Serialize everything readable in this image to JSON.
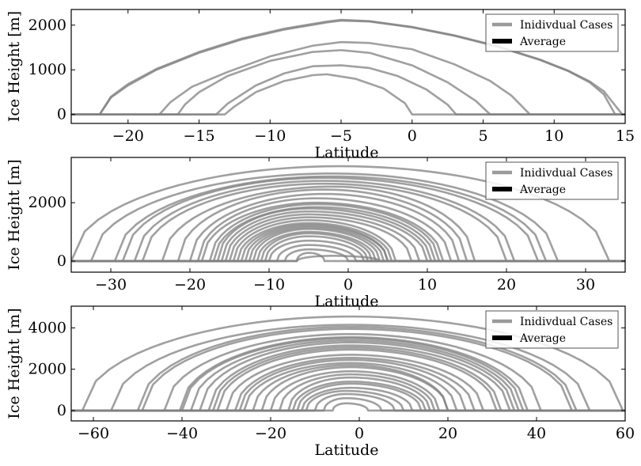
{
  "chart_data": [
    {
      "type": "line",
      "xlabel": "Latitude",
      "ylabel": "Ice Height [m]",
      "xlim": [
        -24,
        15
      ],
      "ylim": [
        -200,
        2350
      ],
      "xticks": [
        -20,
        -15,
        -10,
        -5,
        0,
        5,
        10,
        15
      ],
      "yticks": [
        0,
        1000,
        2000
      ],
      "legend": {
        "position": "top-right",
        "entries": [
          "Inidivdual Cases",
          "Average"
        ]
      },
      "series": [
        {
          "x": [
            -22,
            -21.2,
            -20,
            -18,
            -15,
            -12,
            -9,
            -6,
            -5,
            -3,
            0,
            3,
            6,
            9,
            11,
            12.5,
            13.5,
            14.3
          ],
          "y": [
            0,
            380,
            650,
            1000,
            1380,
            1680,
            1900,
            2060,
            2100,
            2080,
            1950,
            1760,
            1520,
            1220,
            970,
            720,
            450,
            0
          ]
        },
        {
          "x": [
            -22,
            -21.2,
            -20,
            -18,
            -15,
            -12,
            -9,
            -6,
            -5,
            -3,
            0,
            3,
            6,
            9,
            11,
            12.5,
            13.5,
            14.8
          ],
          "y": [
            0,
            400,
            680,
            1020,
            1400,
            1700,
            1920,
            2080,
            2120,
            2090,
            1960,
            1770,
            1530,
            1230,
            980,
            740,
            520,
            0
          ]
        },
        {
          "x": [
            -17.8,
            -17,
            -15.5,
            -13,
            -10,
            -7,
            -5,
            -3,
            0,
            3,
            5.5,
            7,
            8.3
          ],
          "y": [
            0,
            280,
            620,
            950,
            1300,
            1540,
            1620,
            1600,
            1460,
            1120,
            750,
            420,
            0
          ]
        },
        {
          "x": [
            -16.5,
            -16,
            -15,
            -13,
            -10,
            -7,
            -5,
            -3,
            0,
            2.5,
            4.5,
            5.5
          ],
          "y": [
            0,
            220,
            500,
            860,
            1200,
            1400,
            1440,
            1380,
            1100,
            720,
            300,
            0
          ]
        },
        {
          "x": [
            -13.8,
            -13,
            -11,
            -9,
            -7,
            -5,
            -3,
            -1,
            1,
            2.5,
            3.1
          ],
          "y": [
            0,
            240,
            650,
            920,
            1080,
            1100,
            1040,
            860,
            560,
            220,
            0
          ]
        },
        {
          "x": [
            -13.2,
            -12.5,
            -11,
            -9,
            -7,
            -6,
            -4,
            -2,
            -0.5,
            0
          ],
          "y": [
            0,
            180,
            500,
            750,
            880,
            900,
            800,
            580,
            250,
            0
          ]
        }
      ]
    },
    {
      "type": "line",
      "xlabel": "Latitude",
      "ylabel": "Ice Height [m]",
      "xlim": [
        -35,
        35
      ],
      "ylim": [
        -380,
        3550
      ],
      "xticks": [
        -30,
        -20,
        -10,
        0,
        10,
        20,
        30
      ],
      "yticks": [
        0,
        2000
      ],
      "legend": {
        "position": "top-right",
        "entries": [
          "Inidivdual Cases",
          "Average"
        ]
      },
      "series": [
        {
          "left": -35,
          "right": 33,
          "peak": 3250,
          "center": -1
        },
        {
          "left": -32.5,
          "right": 26.5,
          "peak": 3000,
          "center": -2
        },
        {
          "left": -29.5,
          "right": 25,
          "peak": 2900,
          "center": -2
        },
        {
          "left": -28.5,
          "right": 24,
          "peak": 2850,
          "center": -3
        },
        {
          "left": -27,
          "right": 21,
          "peak": 2750,
          "center": -3
        },
        {
          "left": -26,
          "right": 20,
          "peak": 2650,
          "center": -3
        },
        {
          "left": -23.5,
          "right": 16,
          "peak": 2550,
          "center": -2
        },
        {
          "left": -21.5,
          "right": 15,
          "peak": 2450,
          "center": -3
        },
        {
          "left": -20,
          "right": 14,
          "peak": 2300,
          "center": -3
        },
        {
          "left": -19,
          "right": 13,
          "peak": 2150,
          "center": -4
        },
        {
          "left": -18.5,
          "right": 12,
          "peak": 2000,
          "center": -4
        },
        {
          "left": -17.5,
          "right": 11.5,
          "peak": 1950,
          "center": -4
        },
        {
          "left": -17,
          "right": 11,
          "peak": 1850,
          "center": -4
        },
        {
          "left": -16.5,
          "right": 10.5,
          "peak": 1800,
          "center": -5
        },
        {
          "left": -16,
          "right": 10,
          "peak": 1700,
          "center": -5
        },
        {
          "left": -15.5,
          "right": 9,
          "peak": 1600,
          "center": -5
        },
        {
          "left": -15,
          "right": 8,
          "peak": 1500,
          "center": -5
        },
        {
          "left": -14.5,
          "right": 6,
          "peak": 1400,
          "center": -5
        },
        {
          "left": -14,
          "right": 5.5,
          "peak": 1300,
          "center": -5
        },
        {
          "left": -13.5,
          "right": 5,
          "peak": 1250,
          "center": -5
        },
        {
          "left": -13,
          "right": 5,
          "peak": 1200,
          "center": -5
        },
        {
          "left": -12.5,
          "right": 4.5,
          "peak": 1150,
          "center": -5
        },
        {
          "left": -12,
          "right": 4,
          "peak": 1100,
          "center": -5
        },
        {
          "left": -11.5,
          "right": 3.5,
          "peak": 1000,
          "center": -5
        },
        {
          "left": -11,
          "right": 3,
          "peak": 950,
          "center": -5
        },
        {
          "left": -10.5,
          "right": 2.5,
          "peak": 850,
          "center": -5
        },
        {
          "left": -10,
          "right": 2,
          "peak": 700,
          "center": -5
        },
        {
          "left": -9,
          "right": 1,
          "peak": 550,
          "center": -5
        },
        {
          "left": -8,
          "right": 0,
          "peak": 400,
          "center": -5
        },
        {
          "left": -6.5,
          "right": -3,
          "peak": 280,
          "center": -5
        },
        {
          "left": -6.5,
          "right": 4,
          "peak": 180,
          "center": -2
        }
      ]
    },
    {
      "type": "line",
      "xlabel": "Latitude",
      "ylabel": "Ice Height [m]",
      "xlim": [
        -65,
        60
      ],
      "ylim": [
        -500,
        5050
      ],
      "xticks": [
        -60,
        -40,
        -20,
        0,
        20,
        40,
        60
      ],
      "yticks": [
        0,
        2000,
        4000
      ],
      "legend": {
        "position": "top-right",
        "entries": [
          "Inidivdual Cases",
          "Average"
        ]
      },
      "series": [
        {
          "left": -62.5,
          "right": 59.5,
          "peak": 4550,
          "center": -2
        },
        {
          "left": -56,
          "right": 52,
          "peak": 4150,
          "center": -2
        },
        {
          "left": -50,
          "right": 49,
          "peak": 4050,
          "center": -2
        },
        {
          "left": -49,
          "right": 48,
          "peak": 3950,
          "center": -2
        },
        {
          "left": -44,
          "right": 41,
          "peak": 3700,
          "center": -2
        },
        {
          "left": -40.5,
          "right": 38,
          "peak": 3550,
          "center": -2
        },
        {
          "left": -40,
          "right": 37,
          "peak": 3500,
          "center": -2
        },
        {
          "left": -38,
          "right": 36,
          "peak": 3400,
          "center": -2
        },
        {
          "left": -36,
          "right": 35,
          "peak": 3300,
          "center": -2
        },
        {
          "left": -34,
          "right": 34,
          "peak": 3150,
          "center": -2
        },
        {
          "left": -33,
          "right": 32,
          "peak": 3050,
          "center": -2
        },
        {
          "left": -32,
          "right": 31,
          "peak": 2950,
          "center": -2
        },
        {
          "left": -30,
          "right": 28,
          "peak": 2700,
          "center": -2
        },
        {
          "left": -28,
          "right": 26,
          "peak": 2550,
          "center": -2
        },
        {
          "left": -27,
          "right": 24,
          "peak": 2450,
          "center": -2
        },
        {
          "left": -26,
          "right": 22,
          "peak": 2300,
          "center": -2
        },
        {
          "left": -24,
          "right": 20,
          "peak": 2200,
          "center": -2
        },
        {
          "left": -22,
          "right": 20,
          "peak": 2100,
          "center": -2
        },
        {
          "left": -20,
          "right": 18,
          "peak": 1900,
          "center": -2
        },
        {
          "left": -18,
          "right": 17,
          "peak": 1750,
          "center": -2
        },
        {
          "left": -16,
          "right": 16,
          "peak": 1600,
          "center": -2
        },
        {
          "left": -15,
          "right": 15,
          "peak": 1400,
          "center": -2
        },
        {
          "left": -14,
          "right": 14,
          "peak": 1300,
          "center": -2
        },
        {
          "left": -13,
          "right": 12,
          "peak": 1100,
          "center": -2
        },
        {
          "left": -12,
          "right": 10,
          "peak": 950,
          "center": -3
        },
        {
          "left": -10,
          "right": 8,
          "peak": 800,
          "center": -3
        },
        {
          "left": -8,
          "right": 5,
          "peak": 600,
          "center": -3
        },
        {
          "left": -6,
          "right": 2,
          "peak": 350,
          "center": -3
        }
      ]
    }
  ]
}
